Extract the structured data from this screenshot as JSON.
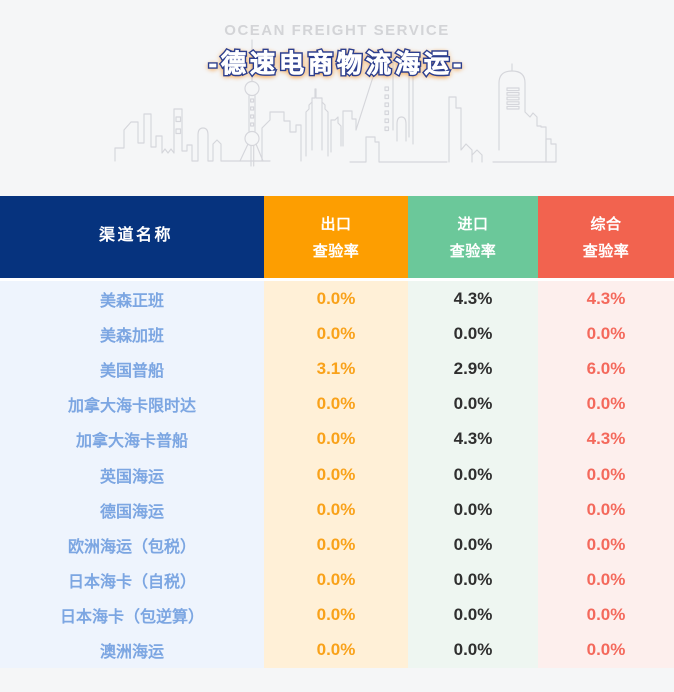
{
  "hero": {
    "eyebrow": "OCEAN FREIGHT SERVICE",
    "title": "-德速电商物流海运-"
  },
  "colors": {
    "page_background": "#f5f6f7",
    "header_channel": "#06337e",
    "header_export": "#fd9e01",
    "header_import": "#6bc89a",
    "header_overall": "#f2634f",
    "column_channel_bg": "#eef4fd",
    "column_export_bg": "#fff0d7",
    "column_import_bg": "#eef6f1",
    "column_overall_bg": "#fdefed",
    "title_stroke": "#2c3e8e",
    "title_glow": "#f9b161"
  },
  "table": {
    "columns": [
      {
        "key": "channel",
        "label": "渠道名称",
        "label2": ""
      },
      {
        "key": "export",
        "label": "出口",
        "label2": "查验率"
      },
      {
        "key": "import",
        "label": "进口",
        "label2": "查验率"
      },
      {
        "key": "overall",
        "label": "综合",
        "label2": "查验率"
      }
    ],
    "rows": [
      {
        "channel": "美森正班",
        "export": "0.0%",
        "import": "4.3%",
        "overall": "4.3%"
      },
      {
        "channel": "美森加班",
        "export": "0.0%",
        "import": "0.0%",
        "overall": "0.0%"
      },
      {
        "channel": "美国普船",
        "export": "3.1%",
        "import": "2.9%",
        "overall": "6.0%"
      },
      {
        "channel": "加拿大海卡限时达",
        "export": "0.0%",
        "import": "0.0%",
        "overall": "0.0%"
      },
      {
        "channel": "加拿大海卡普船",
        "export": "0.0%",
        "import": "4.3%",
        "overall": "4.3%"
      },
      {
        "channel": "英国海运",
        "export": "0.0%",
        "import": "0.0%",
        "overall": "0.0%"
      },
      {
        "channel": "德国海运",
        "export": "0.0%",
        "import": "0.0%",
        "overall": "0.0%"
      },
      {
        "channel": "欧洲海运（包税）",
        "export": "0.0%",
        "import": "0.0%",
        "overall": "0.0%"
      },
      {
        "channel": "日本海卡（自税）",
        "export": "0.0%",
        "import": "0.0%",
        "overall": "0.0%"
      },
      {
        "channel": "日本海卡（包逆算）",
        "export": "0.0%",
        "import": "0.0%",
        "overall": "0.0%"
      },
      {
        "channel": "澳洲海运",
        "export": "0.0%",
        "import": "0.0%",
        "overall": "0.0%"
      }
    ]
  }
}
